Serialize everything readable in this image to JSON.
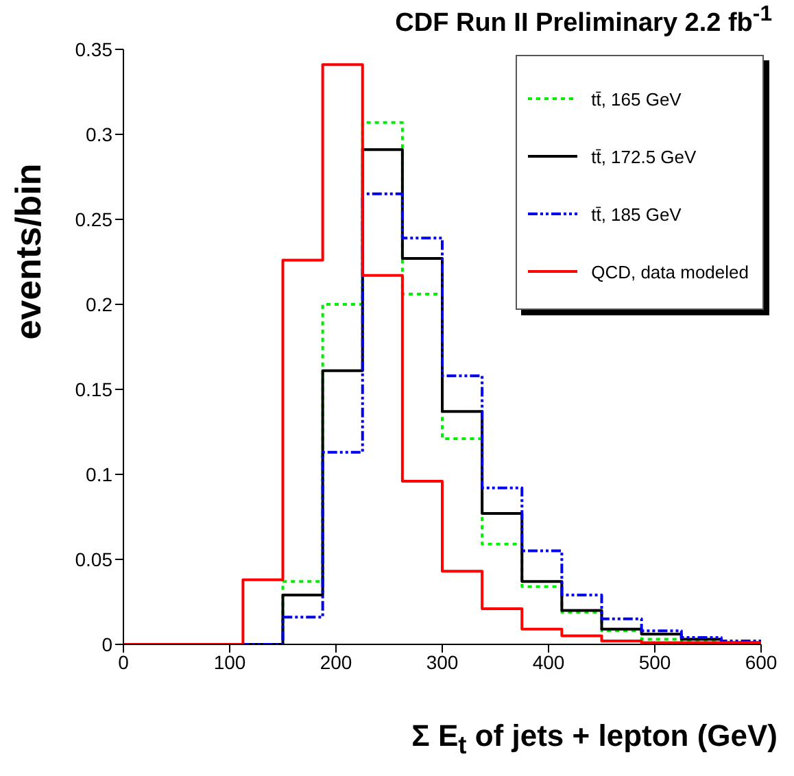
{
  "chart_data": {
    "type": "histogram",
    "title": "CDF Run II Preliminary 2.2 fb$^{-1}$",
    "xlabel": "Σ E$_{t}$ of jets + lepton (GeV)",
    "ylabel": "events/bin",
    "bins": [
      0,
      37.5,
      75,
      112.5,
      150,
      187.5,
      225,
      262.5,
      300,
      337.5,
      375,
      412.5,
      450,
      487.5,
      525,
      562.5,
      600
    ],
    "series": [
      {
        "name": "tt̄, 165 GeV",
        "color": "#00ee00",
        "line_style": "dotted",
        "values": [
          0,
          0,
          0,
          0,
          0.037,
          0.2,
          0.307,
          0.206,
          0.121,
          0.059,
          0.034,
          0.019,
          0.008,
          0.003,
          0.002,
          0.001
        ]
      },
      {
        "name": "tt̄, 172.5 GeV",
        "color": "#000000",
        "line_style": "solid",
        "values": [
          0,
          0,
          0,
          0,
          0.029,
          0.161,
          0.291,
          0.227,
          0.137,
          0.077,
          0.037,
          0.02,
          0.009,
          0.006,
          0.003,
          0.001
        ]
      },
      {
        "name": "tt̄, 185 GeV",
        "color": "#0000ee",
        "line_style": "dashed",
        "values": [
          0,
          0,
          0,
          0,
          0.016,
          0.113,
          0.265,
          0.239,
          0.158,
          0.092,
          0.055,
          0.029,
          0.015,
          0.008,
          0.004,
          0.002
        ]
      },
      {
        "name": "QCD, data modeled",
        "color": "#ff0000",
        "line_style": "solid",
        "values": [
          0,
          0,
          0,
          0.038,
          0.226,
          0.341,
          0.217,
          0.096,
          0.043,
          0.021,
          0.009,
          0.005,
          0.002,
          0.001,
          0.001,
          0.001
        ]
      }
    ],
    "xlim": [
      0,
      600
    ],
    "xticks": [
      0,
      100,
      200,
      300,
      400,
      500,
      600
    ],
    "ylim": [
      0,
      0.35
    ],
    "yticks": [
      0,
      0.05,
      0.1,
      0.15,
      0.2,
      0.25,
      0.3,
      0.35
    ],
    "legend": "top right"
  }
}
